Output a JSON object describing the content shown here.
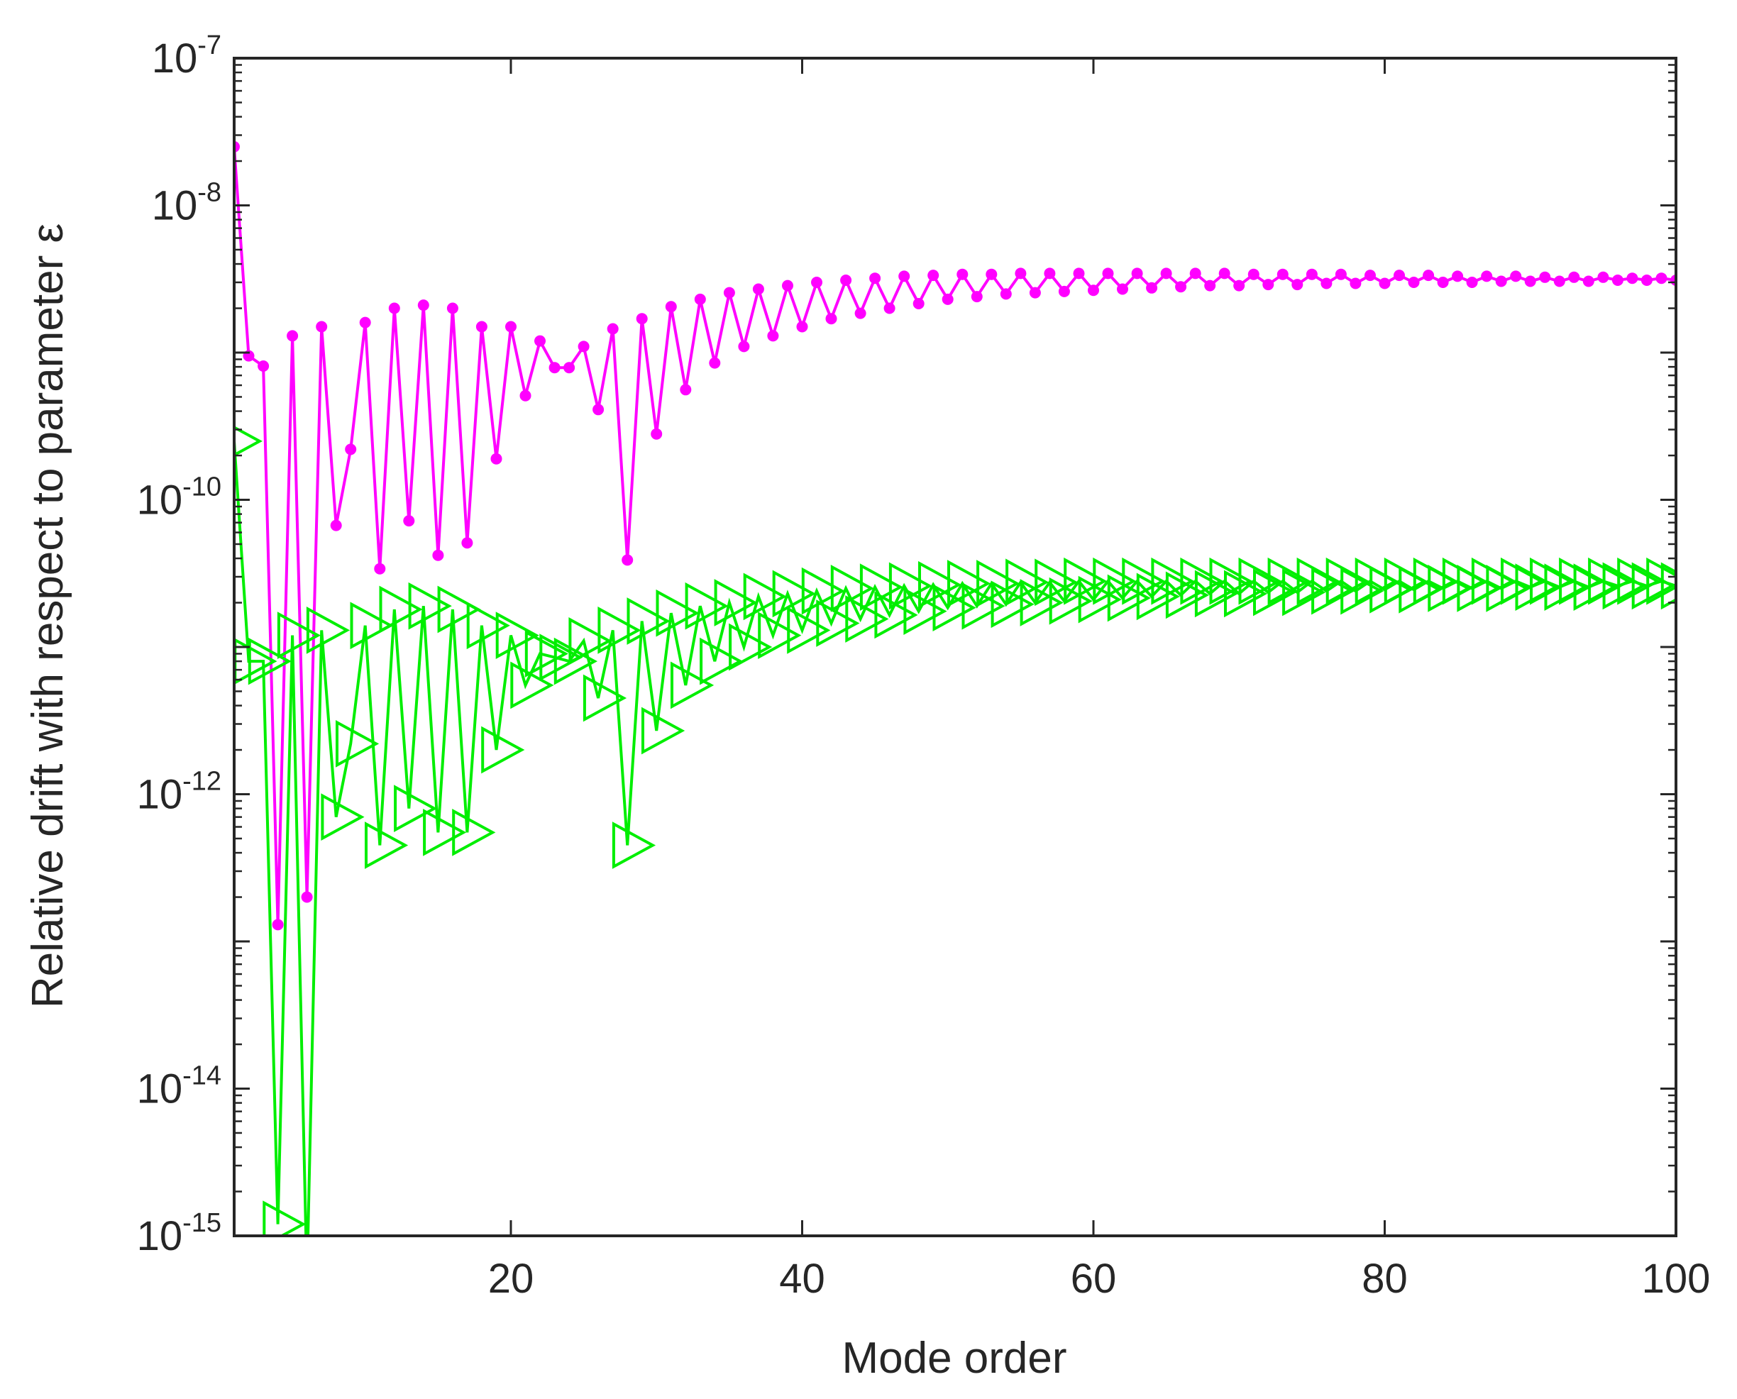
{
  "chart_data": {
    "type": "line",
    "title": "",
    "xlabel": "Mode order",
    "ylabel": "Relative drift with respect to parameter ε",
    "xlim": [
      1,
      100
    ],
    "ylim": [
      1e-15,
      1e-07
    ],
    "yscale": "log",
    "grid": false,
    "x_ticks": [
      "20",
      "40",
      "60",
      "80",
      "100"
    ],
    "y_ticks": [
      {
        "base": "10",
        "exp": "-7"
      },
      {
        "base": "10",
        "exp": "-8"
      },
      {
        "base": "10",
        "exp": "-10"
      },
      {
        "base": "10",
        "exp": "-12"
      },
      {
        "base": "10",
        "exp": "-14"
      },
      {
        "base": "10",
        "exp": "-15"
      }
    ],
    "series": [
      {
        "color": "#ff00ff",
        "marker": "dot",
        "x": [
          1,
          2,
          3,
          4,
          5,
          6,
          7,
          8,
          9,
          10,
          11,
          12,
          13,
          14,
          15,
          16,
          17,
          18,
          19,
          20,
          21,
          22,
          23,
          24,
          25,
          26,
          27,
          28,
          29,
          30,
          31,
          32,
          33,
          34,
          35,
          36,
          37,
          38,
          39,
          40,
          41,
          42,
          43,
          44,
          45,
          46,
          47,
          48,
          49,
          50,
          51,
          52,
          53,
          54,
          55,
          56,
          57,
          58,
          59,
          60,
          61,
          62,
          63,
          64,
          65,
          66,
          67,
          68,
          69,
          70,
          71,
          72,
          73,
          74,
          75,
          76,
          77,
          78,
          79,
          80,
          81,
          82,
          83,
          84,
          85,
          86,
          87,
          88,
          89,
          90,
          91,
          92,
          93,
          94,
          95,
          96,
          97,
          98,
          99,
          100
        ],
        "y": [
          2.5e-08,
          9.5e-10,
          8.1e-10,
          1.3e-13,
          1.3e-09,
          2e-13,
          1.5e-09,
          6.7e-11,
          2.2e-10,
          1.6e-09,
          3.4e-11,
          2e-09,
          7.2e-11,
          2.1e-09,
          4.2e-11,
          2e-09,
          5.1e-11,
          1.5e-09,
          1.9e-10,
          1.5e-09,
          5.1e-10,
          1.2e-09,
          7.9e-10,
          7.9e-10,
          1.1e-09,
          4.1e-10,
          1.45e-09,
          3.9e-11,
          1.7e-09,
          2.8e-10,
          2.05e-09,
          5.6e-10,
          2.3e-09,
          8.5e-10,
          2.55e-09,
          1.1e-09,
          2.7e-09,
          1.3e-09,
          2.85e-09,
          1.5e-09,
          3e-09,
          1.7e-09,
          3.1e-09,
          1.85e-09,
          3.2e-09,
          2e-09,
          3.3e-09,
          2.15e-09,
          3.35e-09,
          2.3e-09,
          3.4e-09,
          2.4e-09,
          3.4e-09,
          2.5e-09,
          3.45e-09,
          2.55e-09,
          3.45e-09,
          2.6e-09,
          3.45e-09,
          2.65e-09,
          3.45e-09,
          2.7e-09,
          3.45e-09,
          2.75e-09,
          3.45e-09,
          2.8e-09,
          3.45e-09,
          2.85e-09,
          3.45e-09,
          2.85e-09,
          3.4e-09,
          2.9e-09,
          3.4e-09,
          2.9e-09,
          3.4e-09,
          2.95e-09,
          3.4e-09,
          2.95e-09,
          3.35e-09,
          2.95e-09,
          3.35e-09,
          3e-09,
          3.35e-09,
          3e-09,
          3.3e-09,
          3e-09,
          3.3e-09,
          3.05e-09,
          3.3e-09,
          3.05e-09,
          3.25e-09,
          3.05e-09,
          3.25e-09,
          3.05e-09,
          3.25e-09,
          3.1e-09,
          3.2e-09,
          3.1e-09,
          3.2e-09,
          3.1e-09
        ]
      },
      {
        "color": "#00ee00",
        "marker": "triangle-right",
        "x": [
          1,
          2,
          3,
          4,
          5,
          6,
          7,
          8,
          9,
          10,
          11,
          12,
          13,
          14,
          15,
          16,
          17,
          18,
          19,
          20,
          21,
          22,
          23,
          24,
          25,
          26,
          27,
          28,
          29,
          30,
          31,
          32,
          33,
          34,
          35,
          36,
          37,
          38,
          39,
          40,
          41,
          42,
          43,
          44,
          45,
          46,
          47,
          48,
          49,
          50,
          51,
          52,
          53,
          54,
          55,
          56,
          57,
          58,
          59,
          60,
          61,
          62,
          63,
          64,
          65,
          66,
          67,
          68,
          69,
          70,
          71,
          72,
          73,
          74,
          75,
          76,
          77,
          78,
          79,
          80,
          81,
          82,
          83,
          84,
          85,
          86,
          87,
          88,
          89,
          90,
          91,
          92,
          93,
          94,
          95,
          96,
          97,
          98,
          99,
          100
        ],
        "y": [
          2.5e-10,
          8e-12,
          8e-12,
          1.2e-15,
          1.2e-11,
          5e-16,
          1.3e-11,
          7e-13,
          2.2e-12,
          1.4e-11,
          4.5e-13,
          1.8e-11,
          8e-13,
          1.9e-11,
          5.5e-13,
          1.8e-11,
          5.5e-13,
          1.4e-11,
          2e-12,
          1.2e-11,
          5.5e-12,
          9e-12,
          8.5e-12,
          8e-12,
          1.1e-11,
          4.5e-12,
          1.3e-11,
          4.5e-13,
          1.5e-11,
          2.7e-12,
          1.7e-11,
          5.5e-12,
          1.9e-11,
          8e-12,
          2e-11,
          1e-11,
          2.2e-11,
          1.2e-11,
          2.3e-11,
          1.3e-11,
          2.4e-11,
          1.45e-11,
          2.5e-11,
          1.55e-11,
          2.55e-11,
          1.65e-11,
          2.6e-11,
          1.75e-11,
          2.65e-11,
          1.85e-11,
          2.7e-11,
          1.9e-11,
          2.7e-11,
          1.95e-11,
          2.75e-11,
          2e-11,
          2.75e-11,
          2.05e-11,
          2.8e-11,
          2.1e-11,
          2.8e-11,
          2.15e-11,
          2.8e-11,
          2.2e-11,
          2.8e-11,
          2.25e-11,
          2.8e-11,
          2.3e-11,
          2.8e-11,
          2.3e-11,
          2.8e-11,
          2.35e-11,
          2.8e-11,
          2.35e-11,
          2.8e-11,
          2.4e-11,
          2.8e-11,
          2.4e-11,
          2.8e-11,
          2.45e-11,
          2.8e-11,
          2.45e-11,
          2.8e-11,
          2.5e-11,
          2.8e-11,
          2.5e-11,
          2.8e-11,
          2.5e-11,
          2.8e-11,
          2.55e-11,
          2.8e-11,
          2.55e-11,
          2.8e-11,
          2.55e-11,
          2.8e-11,
          2.6e-11,
          2.8e-11,
          2.6e-11,
          2.8e-11,
          2.6e-11
        ]
      }
    ]
  }
}
